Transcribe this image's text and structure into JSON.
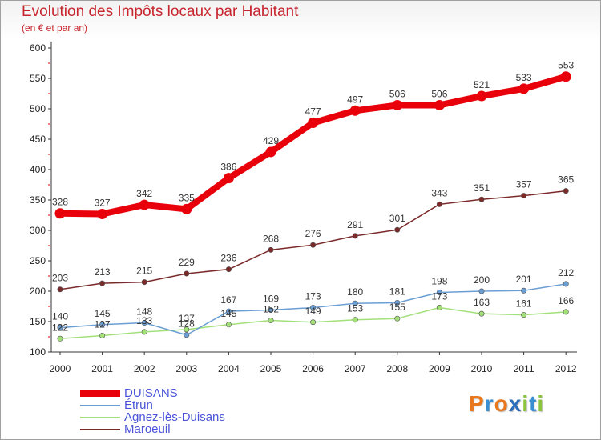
{
  "title": "Evolution des Impôts locaux par Habitant",
  "subtitle": "(en € et par an)",
  "logo": {
    "text": "Proxiti",
    "letters": [
      "P",
      "r",
      "o",
      "x",
      "i",
      "t",
      "i"
    ],
    "colors": [
      "#e8781e",
      "#3a8fd1",
      "#e8781e",
      "#2c6fb8",
      "#8bc53f",
      "#3a8fd1",
      "#8bc53f"
    ]
  },
  "chart_data": {
    "type": "line",
    "x": [
      "2000",
      "2001",
      "2002",
      "2003",
      "2004",
      "2005",
      "2006",
      "2007",
      "2008",
      "2009",
      "2010",
      "2011",
      "2012"
    ],
    "ylim": [
      100,
      600
    ],
    "yticks": [
      100,
      150,
      200,
      250,
      300,
      350,
      400,
      450,
      500,
      550,
      600
    ],
    "grid": false,
    "legend_position": "bottom-left",
    "series": [
      {
        "name": "DUISANS",
        "color": "#e8000b",
        "values": [
          328,
          327,
          342,
          335,
          386,
          429,
          477,
          497,
          506,
          506,
          521,
          533,
          553
        ]
      },
      {
        "name": "Étrun",
        "color": "#6b9fd4",
        "values": [
          140,
          145,
          148,
          128,
          167,
          169,
          173,
          180,
          181,
          198,
          200,
          201,
          212
        ]
      },
      {
        "name": "Agnez-lès-Duisans",
        "color": "#a3e07a",
        "values": [
          122,
          127,
          133,
          137,
          145,
          152,
          149,
          153,
          155,
          173,
          163,
          161,
          166
        ]
      },
      {
        "name": "Maroeuil",
        "color": "#7b2a2a",
        "values": [
          203,
          213,
          215,
          229,
          236,
          268,
          276,
          291,
          301,
          343,
          351,
          357,
          365
        ]
      }
    ]
  }
}
